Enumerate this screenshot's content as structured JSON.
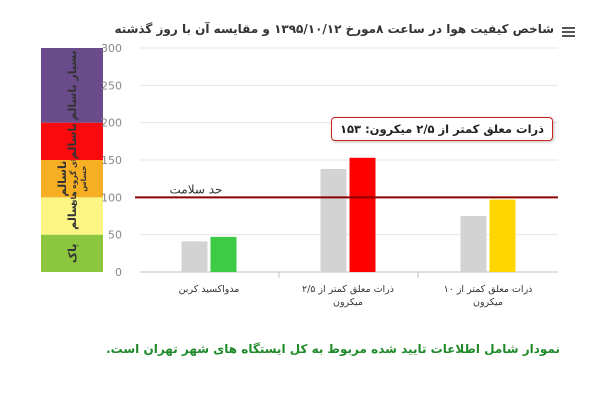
{
  "header": {
    "title": "شاخص کیفیت هوا در ساعت ۸مورخ ۱۳۹۵/۱۰/۱۲ و مقایسه آن با روز گذشته",
    "menu_icon": "hamburger-menu-icon"
  },
  "chart_data": {
    "type": "bar",
    "ylim": [
      0,
      300
    ],
    "yticks": [
      "0",
      "50",
      "100",
      "150",
      "200",
      "250",
      "300"
    ],
    "categories": [
      [
        "مدواکسید کربن"
      ],
      [
        "ذرات معلق کمتر از ۲/۵",
        "میکرون"
      ],
      [
        "ذرات معلق کمتر از ۱۰",
        "میکرون"
      ]
    ],
    "series": [
      {
        "color": "#d3d3d3",
        "values": [
          41,
          138,
          75
        ]
      },
      {
        "color": "#ffffff",
        "values": [
          47,
          153,
          97
        ]
      }
    ],
    "bar_colors": [
      [
        "#d3d3d3",
        "#3dcb45"
      ],
      [
        "#d3d3d3",
        "#ff0000"
      ],
      [
        "#d3d3d3",
        "#ffd500"
      ]
    ],
    "reference_line": {
      "value": 100,
      "label": "حد سلامت",
      "color": "#8b0000"
    },
    "bands": [
      {
        "from": 0,
        "to": 50,
        "color": "#8cc63f",
        "label": "پاک"
      },
      {
        "from": 50,
        "to": 100,
        "color": "#fcf584",
        "label": "سالم"
      },
      {
        "from": 100,
        "to": 150,
        "color": "#f6ae23",
        "label": "ناسالم",
        "label2": "برای گروه های",
        "label3": "حساس"
      },
      {
        "from": 150,
        "to": 200,
        "color": "#fa0a0c",
        "label": "ناسالم"
      },
      {
        "from": 200,
        "to": 300,
        "color": "#6a4c8d",
        "label": "بسیار ناسالم"
      }
    ],
    "tooltip": "ذرات معلق کمتر از ۲/۵ میکرون: ۱۵۳"
  },
  "footer": {
    "caption": "نمودار شامل اطلاعات تایید شده مربوط به کل ایستگاه های شهر تهران است."
  }
}
